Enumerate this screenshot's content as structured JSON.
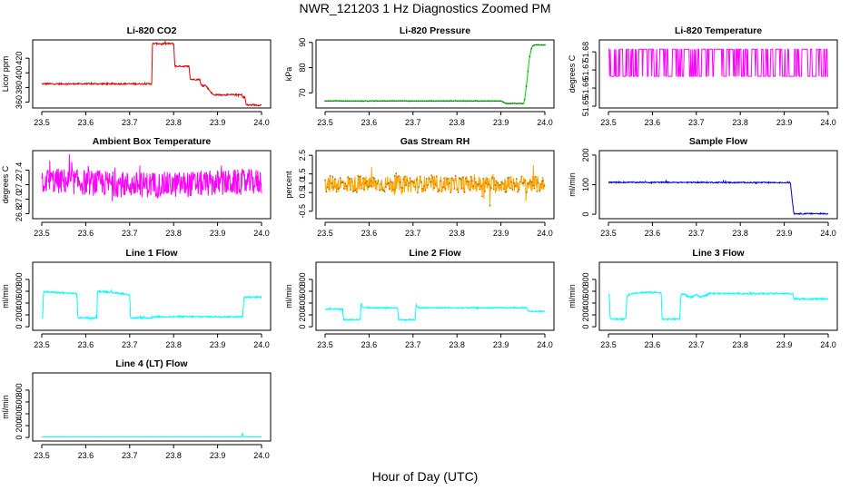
{
  "title": "NWR_121203  1 Hz Diagnostics Zoomed PM",
  "xlabel": "Hour of Day (UTC)",
  "colors": {
    "red": "#dd0000",
    "green": "#00cc00",
    "magenta": "#ff00ff",
    "orange": "#ffa500",
    "blue": "#0000cc",
    "cyan": "#00ffff"
  },
  "chart_data": [
    {
      "type": "line",
      "title": "Li-820 CO2",
      "ylabel": "Licor ppm",
      "color": "red",
      "xlim": [
        23.5,
        24.0
      ],
      "ylim": [
        352,
        445
      ],
      "xticks": [
        "23.5",
        "23.6",
        "23.7",
        "23.8",
        "23.9",
        "24.0"
      ],
      "yticks": [
        "360",
        "380",
        "400",
        "420"
      ],
      "noise": 1.0,
      "series": [
        {
          "x": [
            23.5,
            23.75,
            23.752,
            23.77,
            23.772,
            23.778,
            23.8,
            23.803,
            23.812,
            23.835,
            23.838,
            23.855,
            23.86,
            23.862,
            23.873,
            23.875,
            23.89,
            23.955,
            23.958,
            23.962,
            23.965,
            23.97,
            24.0
          ],
          "y": [
            385,
            385,
            440,
            440,
            439,
            440,
            440,
            409,
            409,
            409,
            391,
            391,
            391,
            383,
            383,
            381,
            370,
            370,
            366,
            368,
            356,
            356,
            356
          ]
        }
      ]
    },
    {
      "type": "line",
      "title": "Li-820 Pressure",
      "ylabel": "kPa",
      "color": "green",
      "xlim": [
        23.5,
        24.0
      ],
      "ylim": [
        64,
        91
      ],
      "xticks": [
        "23.5",
        "23.6",
        "23.7",
        "23.8",
        "23.9",
        "24.0"
      ],
      "yticks": [
        "70",
        "80",
        "90"
      ],
      "noise": 0.1,
      "series": [
        {
          "x": [
            23.5,
            23.9,
            23.912,
            23.952,
            23.955,
            23.96,
            23.965,
            23.97,
            23.975,
            24.0
          ],
          "y": [
            66.8,
            66.8,
            65.8,
            65.8,
            68.5,
            76,
            84,
            88,
            89,
            89
          ]
        }
      ]
    },
    {
      "type": "line",
      "title": "Li-820 Temperature",
      "ylabel": "degrees C",
      "color": "magenta",
      "xlim": [
        23.5,
        24.0
      ],
      "ylim": [
        51.649,
        51.6866
      ],
      "xticks": [
        "23.5",
        "23.6",
        "23.7",
        "23.8",
        "23.9",
        "24.0"
      ],
      "yticks": [
        "51.65",
        "51.66",
        "51.67",
        "51.68"
      ],
      "pattern": "toggle",
      "levels": [
        51.6665,
        51.6815
      ],
      "series": [
        {
          "x": [
            23.5,
            24.0
          ],
          "y": [
            51.6665,
            51.6815
          ]
        }
      ]
    },
    {
      "type": "line",
      "title": "Ambient Box Temperature",
      "ylabel": "degrees C",
      "color": "magenta",
      "xlim": [
        23.5,
        24.0
      ],
      "ylim": [
        26.73,
        27.67
      ],
      "xticks": [
        "23.5",
        "23.6",
        "23.7",
        "23.8",
        "23.9",
        "24.0"
      ],
      "yticks": [
        "26.8",
        "27.0",
        "27.2",
        "27.4"
      ],
      "noise": 0.18,
      "series": [
        {
          "x": [
            23.5,
            23.7,
            23.8,
            24.0
          ],
          "y": [
            27.26,
            27.2,
            27.2,
            27.24
          ]
        }
      ]
    },
    {
      "type": "line",
      "title": "Gas Stream RH",
      "ylabel": "percent",
      "color": "orange",
      "xlim": [
        23.5,
        24.0
      ],
      "ylim": [
        -0.9,
        2.75
      ],
      "xticks": [
        "23.5",
        "23.6",
        "23.7",
        "23.8",
        "23.9",
        "24.0"
      ],
      "yticks": [
        "-0.5",
        "0.5",
        "1.0",
        "1.5",
        "2.5"
      ],
      "noise": 0.45,
      "series": [
        {
          "x": [
            23.5,
            24.0
          ],
          "y": [
            0.95,
            0.95
          ]
        }
      ]
    },
    {
      "type": "line",
      "title": "Sample Flow",
      "ylabel": "ml/min",
      "color": "blue",
      "xlim": [
        23.5,
        24.0
      ],
      "ylim": [
        -15,
        215
      ],
      "xticks": [
        "23.5",
        "23.6",
        "23.7",
        "23.8",
        "23.9",
        "24.0"
      ],
      "yticks": [
        "0",
        "100",
        "200"
      ],
      "noise": 2.0,
      "series": [
        {
          "x": [
            23.5,
            23.914,
            23.918,
            23.922,
            24.0
          ],
          "y": [
            108,
            107,
            50,
            2,
            2
          ]
        }
      ]
    },
    {
      "type": "line",
      "title": "Line 1 Flow",
      "ylabel": "ml/min",
      "color": "cyan",
      "xlim": [
        23.5,
        24.0
      ],
      "ylim": [
        -60,
        1090
      ],
      "xticks": [
        "23.5",
        "23.6",
        "23.7",
        "23.8",
        "23.9",
        "24.0"
      ],
      "yticks": [
        "0",
        "200",
        "400",
        "600",
        "800"
      ],
      "noise": 12,
      "series": [
        {
          "x": [
            23.5,
            23.502,
            23.504,
            23.58,
            23.582,
            23.625,
            23.627,
            23.65,
            23.7,
            23.702,
            23.705,
            23.706,
            23.75,
            23.752,
            23.957,
            23.96,
            23.965,
            24.0
          ],
          "y": [
            150,
            150,
            590,
            560,
            150,
            150,
            600,
            590,
            540,
            150,
            150,
            150,
            150,
            170,
            170,
            490,
            500,
            500
          ]
        }
      ]
    },
    {
      "type": "line",
      "title": "Line 2 Flow",
      "ylabel": "ml/min",
      "color": "cyan",
      "xlim": [
        23.5,
        24.0
      ],
      "ylim": [
        -60,
        1090
      ],
      "xticks": [
        "23.5",
        "23.6",
        "23.7",
        "23.8",
        "23.9",
        "24.0"
      ],
      "yticks": [
        "0",
        "200",
        "400",
        "600",
        "800"
      ],
      "noise": 10,
      "series": [
        {
          "x": [
            23.5,
            23.54,
            23.542,
            23.58,
            23.582,
            23.586,
            23.62,
            23.622,
            23.665,
            23.667,
            23.705,
            23.707,
            23.712,
            23.96,
            23.962,
            24.0
          ],
          "y": [
            300,
            300,
            120,
            120,
            400,
            320,
            320,
            320,
            320,
            120,
            120,
            380,
            320,
            320,
            260,
            260
          ]
        }
      ]
    },
    {
      "type": "line",
      "title": "Line 3 Flow",
      "ylabel": "ml/min",
      "color": "cyan",
      "xlim": [
        23.5,
        24.0
      ],
      "ylim": [
        -60,
        1090
      ],
      "xticks": [
        "23.5",
        "23.6",
        "23.7",
        "23.8",
        "23.9",
        "24.0"
      ],
      "yticks": [
        "0",
        "200",
        "400",
        "600",
        "800"
      ],
      "noise": 12,
      "series": [
        {
          "x": [
            23.5,
            23.502,
            23.504,
            23.54,
            23.542,
            23.55,
            23.56,
            23.58,
            23.62,
            23.622,
            23.625,
            23.662,
            23.665,
            23.67,
            23.68,
            23.69,
            23.7,
            23.71,
            23.73,
            23.92,
            23.922,
            24.0
          ],
          "y": [
            540,
            540,
            130,
            130,
            530,
            550,
            570,
            580,
            580,
            130,
            130,
            130,
            530,
            560,
            520,
            500,
            540,
            500,
            560,
            560,
            470,
            470
          ]
        }
      ]
    },
    {
      "type": "line",
      "title": "Line 4 (LT) Flow",
      "ylabel": "ml/min",
      "color": "cyan",
      "xlim": [
        23.5,
        24.0
      ],
      "ylim": [
        -60,
        1090
      ],
      "xticks": [
        "23.5",
        "23.6",
        "23.7",
        "23.8",
        "23.9",
        "24.0"
      ],
      "yticks": [
        "0",
        "200",
        "400",
        "600",
        "800"
      ],
      "noise": 1,
      "series": [
        {
          "x": [
            23.5,
            23.955,
            23.957,
            23.959,
            23.961,
            24.0
          ],
          "y": [
            10,
            10,
            80,
            10,
            10,
            10
          ]
        }
      ]
    }
  ]
}
